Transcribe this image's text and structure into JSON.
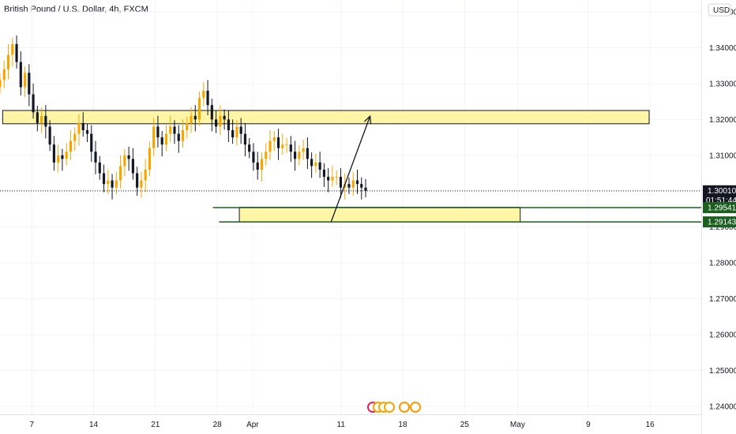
{
  "chart_data": {
    "type": "candlestick",
    "title": "British Pound / U.S. Dollar, 4h, FXCM",
    "currency": "USD",
    "y_ticks": [
      1.35,
      1.34,
      1.33,
      1.32,
      1.31,
      1.3,
      1.29,
      1.28,
      1.27,
      1.26,
      1.25,
      1.24
    ],
    "y_tick_labels": [
      "1.35000",
      "1.34000",
      "1.33000",
      "1.32000",
      "1.31000",
      "1.30000",
      "1.29000",
      "1.28000",
      "1.27000",
      "1.26000",
      "1.25000",
      "1.24000"
    ],
    "ylim": [
      1.2378,
      1.3533
    ],
    "x_labels": [
      {
        "label": "7",
        "day": 0
      },
      {
        "label": "14",
        "day": 7
      },
      {
        "label": "21",
        "day": 14
      },
      {
        "label": "28",
        "day": 21
      },
      {
        "label": "Apr",
        "day": 25
      },
      {
        "label": "11",
        "day": 35
      },
      {
        "label": "18",
        "day": 42
      },
      {
        "label": "25",
        "day": 49
      },
      {
        "label": "May",
        "day": 55
      },
      {
        "label": "9",
        "day": 63
      },
      {
        "label": "16",
        "day": 70
      }
    ],
    "xlim": [
      -3.6,
      75.8
    ],
    "candle_days": [
      -3.6,
      37.8
    ],
    "closes": [
      1.331,
      1.334,
      1.338,
      1.341,
      1.336,
      1.329,
      1.333,
      1.327,
      1.322,
      1.319,
      1.321,
      1.318,
      1.313,
      1.308,
      1.31,
      1.309,
      1.311,
      1.314,
      1.316,
      1.319,
      1.317,
      1.316,
      1.311,
      1.308,
      1.305,
      1.302,
      1.303,
      1.301,
      1.303,
      1.307,
      1.31,
      1.309,
      1.305,
      1.301,
      1.303,
      1.306,
      1.312,
      1.318,
      1.315,
      1.313,
      1.316,
      1.318,
      1.316,
      1.314,
      1.317,
      1.319,
      1.321,
      1.32,
      1.326,
      1.328,
      1.324,
      1.32,
      1.318,
      1.321,
      1.32,
      1.317,
      1.315,
      1.318,
      1.316,
      1.313,
      1.311,
      1.308,
      1.306,
      1.309,
      1.311,
      1.314,
      1.315,
      1.312,
      1.313,
      1.313,
      1.311,
      1.309,
      1.311,
      1.312,
      1.309,
      1.307,
      1.308,
      1.306,
      1.304,
      1.303,
      1.304,
      1.304,
      1.301,
      1.302,
      1.301,
      1.303,
      1.302,
      1.301,
      1.3001
    ],
    "current_price": {
      "value": "1.30010",
      "countdown": "01:51:44"
    },
    "zones": [
      {
        "top": 1.3225,
        "bottom": 1.3188,
        "day_from": -3.3,
        "day_to": 69.9
      },
      {
        "top": 1.2955,
        "bottom": 1.2914,
        "day_from": 23.5,
        "day_to": 55.3
      }
    ],
    "levels": [
      {
        "value": 1.29541,
        "label": "1.29541",
        "day_from": 20.5
      },
      {
        "value": 1.29143,
        "label": "1.29143",
        "day_from": 21.2
      }
    ],
    "arrow": {
      "from": {
        "day": 33.9,
        "price": 1.2915
      },
      "to": {
        "day": 38.3,
        "price": 1.3209
      }
    },
    "colors": {
      "up": "#f7a600",
      "down": "#131722",
      "zone_fill": "#fff5a6",
      "zone_stroke": "#131722",
      "level": "#1b5e20",
      "grid": "#f0f3fa"
    }
  }
}
